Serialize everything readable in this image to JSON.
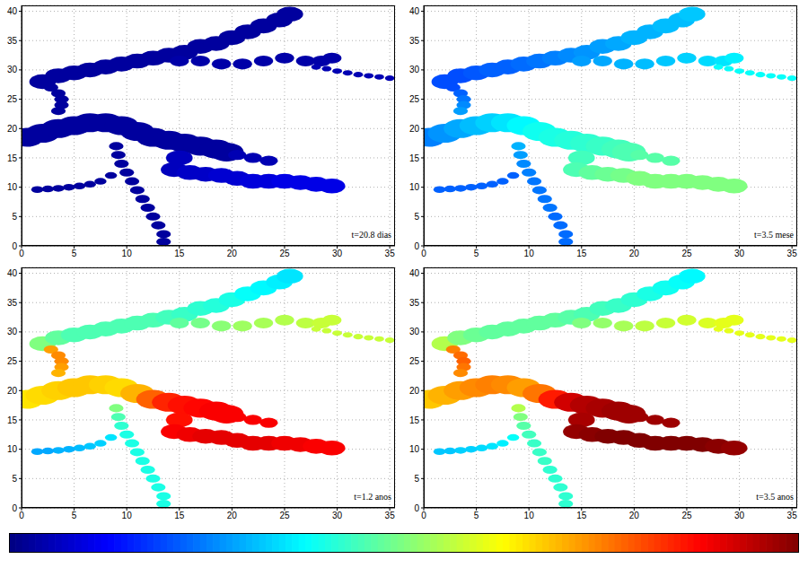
{
  "chart_data": {
    "type": "heatmap",
    "xlim": [
      0,
      35.5
    ],
    "ylim": [
      0,
      41
    ],
    "xticks": [
      0,
      5,
      10,
      15,
      20,
      25,
      30,
      35
    ],
    "yticks": [
      0,
      5,
      10,
      15,
      20,
      25,
      30,
      35,
      40
    ],
    "grid": true,
    "colorbar": {
      "clim": [
        0,
        1
      ]
    },
    "regions": [
      {
        "width": 2.2,
        "x": [
          2,
          3.5,
          5,
          6.5,
          8,
          9.5,
          11,
          12.5,
          14,
          15.5,
          17,
          18.5,
          20,
          21.5,
          23,
          24.5,
          25.5
        ],
        "y": [
          28,
          29,
          29.5,
          30,
          30.5,
          31,
          31.5,
          32,
          32.5,
          33,
          34,
          34.5,
          35.5,
          36.5,
          37.5,
          38.5,
          39.5
        ]
      },
      {
        "width": 1.6,
        "x": [
          15,
          17,
          19,
          21,
          23,
          25,
          27,
          28.5,
          29.5
        ],
        "y": [
          31.5,
          31.5,
          31,
          31,
          31.5,
          32,
          31.5,
          31.5,
          32
        ]
      },
      {
        "width": 0.8,
        "x": [
          28,
          29,
          30,
          31,
          32,
          33,
          34,
          35
        ],
        "y": [
          30.5,
          30.2,
          29.8,
          29.5,
          29.2,
          29,
          28.8,
          28.6
        ]
      },
      {
        "width": 1.2,
        "x": [
          2.8,
          3.5,
          3.8,
          3.8,
          3.5
        ],
        "y": [
          27,
          26,
          25,
          24,
          23
        ]
      },
      {
        "width": 2.8,
        "x": [
          0.5,
          2,
          3.5,
          5,
          6.5,
          8,
          9.5,
          11,
          12.5,
          14,
          15.5,
          17,
          18.5,
          19.5
        ],
        "y": [
          18.5,
          19.2,
          20,
          20.5,
          21,
          21,
          20.5,
          19.5,
          18.5,
          18,
          17.5,
          17,
          16.5,
          16
        ]
      },
      {
        "width": 1.5,
        "x": [
          20.5,
          22,
          23.5
        ],
        "y": [
          15.5,
          15,
          14.5
        ]
      },
      {
        "width": 2.2,
        "x": [
          15,
          14.5,
          16,
          17.5,
          19,
          20.5,
          22,
          23.5,
          25,
          26.5,
          28,
          29.5
        ],
        "y": [
          15,
          13,
          12.5,
          12.2,
          12,
          11.5,
          11,
          11,
          11,
          10.8,
          10.5,
          10.2
        ]
      },
      {
        "width": 1.2,
        "x": [
          9,
          9.2,
          9.5,
          10,
          10.5,
          11,
          11.5,
          12,
          12.5,
          13,
          13.5,
          13.5
        ],
        "y": [
          17,
          15.5,
          14,
          12.5,
          11,
          9.5,
          8,
          6.5,
          5,
          3.5,
          2,
          0.7
        ]
      },
      {
        "width": 1.0,
        "x": [
          8.5,
          7.5,
          6.5,
          5.5,
          4.5,
          3.5,
          2.5,
          1.5
        ],
        "y": [
          12,
          11,
          10.5,
          10.2,
          10,
          9.8,
          9.7,
          9.6
        ]
      }
    ],
    "panels": [
      {
        "annotation": "t=20.8 dias",
        "values": [
          [
            0.03,
            0.03,
            0.03,
            0.03,
            0.03,
            0.03,
            0.03,
            0.03,
            0.03,
            0.03,
            0.03,
            0.03,
            0.03,
            0.03,
            0.03,
            0.03,
            0.03
          ],
          [
            0.04,
            0.04,
            0.04,
            0.04,
            0.04,
            0.04,
            0.04,
            0.04,
            0.04
          ],
          [
            0.05,
            0.05,
            0.05,
            0.05,
            0.05,
            0.05,
            0.05,
            0.05
          ],
          [
            0.03,
            0.03,
            0.03,
            0.03,
            0.03
          ],
          [
            0.03,
            0.03,
            0.03,
            0.03,
            0.03,
            0.03,
            0.03,
            0.03,
            0.03,
            0.03,
            0.03,
            0.03,
            0.03,
            0.03
          ],
          [
            0.05,
            0.05,
            0.05
          ],
          [
            0.06,
            0.06,
            0.07,
            0.07,
            0.08,
            0.08,
            0.09,
            0.09,
            0.1,
            0.1,
            0.1,
            0.1
          ],
          [
            0.03,
            0.03,
            0.03,
            0.03,
            0.03,
            0.03,
            0.03,
            0.03,
            0.03,
            0.03,
            0.03,
            0.03
          ],
          [
            0.03,
            0.03,
            0.03,
            0.03,
            0.03,
            0.03,
            0.03,
            0.03
          ]
        ]
      },
      {
        "annotation": "t=3.5 mese",
        "values": [
          [
            0.2,
            0.2,
            0.21,
            0.22,
            0.22,
            0.23,
            0.24,
            0.25,
            0.26,
            0.27,
            0.28,
            0.29,
            0.3,
            0.3,
            0.31,
            0.31,
            0.32
          ],
          [
            0.28,
            0.29,
            0.3,
            0.31,
            0.32,
            0.33,
            0.34,
            0.35,
            0.36
          ],
          [
            0.38,
            0.38,
            0.38,
            0.38,
            0.38,
            0.38,
            0.38,
            0.38
          ],
          [
            0.2,
            0.22,
            0.24,
            0.26,
            0.28
          ],
          [
            0.25,
            0.27,
            0.29,
            0.31,
            0.33,
            0.35,
            0.37,
            0.39,
            0.4,
            0.41,
            0.42,
            0.43,
            0.44,
            0.45
          ],
          [
            0.46,
            0.46,
            0.46
          ],
          [
            0.44,
            0.45,
            0.47,
            0.48,
            0.49,
            0.5,
            0.5,
            0.5,
            0.5,
            0.5,
            0.5,
            0.5
          ],
          [
            0.3,
            0.28,
            0.26,
            0.25,
            0.24,
            0.24,
            0.24,
            0.24,
            0.23,
            0.23,
            0.23,
            0.23
          ],
          [
            0.22,
            0.22,
            0.22,
            0.22,
            0.22,
            0.22,
            0.22,
            0.22
          ]
        ]
      },
      {
        "annotation": "t=1.2 anos",
        "values": [
          [
            0.5,
            0.47,
            0.45,
            0.45,
            0.45,
            0.45,
            0.45,
            0.45,
            0.44,
            0.43,
            0.42,
            0.41,
            0.4,
            0.38,
            0.37,
            0.36,
            0.35
          ],
          [
            0.47,
            0.49,
            0.51,
            0.53,
            0.54,
            0.55,
            0.56,
            0.57,
            0.57
          ],
          [
            0.57,
            0.57,
            0.57,
            0.57,
            0.57,
            0.57,
            0.57,
            0.57
          ],
          [
            0.72,
            0.74,
            0.74,
            0.72,
            0.7
          ],
          [
            0.65,
            0.66,
            0.67,
            0.68,
            0.68,
            0.67,
            0.66,
            0.7,
            0.78,
            0.84,
            0.86,
            0.87,
            0.88,
            0.88
          ],
          [
            0.88,
            0.88,
            0.88
          ],
          [
            0.86,
            0.88,
            0.89,
            0.9,
            0.9,
            0.9,
            0.9,
            0.9,
            0.89,
            0.89,
            0.88,
            0.88
          ],
          [
            0.5,
            0.45,
            0.42,
            0.4,
            0.4,
            0.4,
            0.4,
            0.4,
            0.4,
            0.4,
            0.4,
            0.4
          ],
          [
            0.35,
            0.33,
            0.32,
            0.31,
            0.3,
            0.3,
            0.29,
            0.29
          ]
        ]
      },
      {
        "annotation": "t=3.5 anos",
        "values": [
          [
            0.55,
            0.5,
            0.48,
            0.47,
            0.47,
            0.47,
            0.47,
            0.47,
            0.46,
            0.45,
            0.44,
            0.43,
            0.42,
            0.4,
            0.39,
            0.38,
            0.37
          ],
          [
            0.5,
            0.52,
            0.54,
            0.56,
            0.57,
            0.58,
            0.59,
            0.6,
            0.6
          ],
          [
            0.6,
            0.6,
            0.6,
            0.6,
            0.6,
            0.6,
            0.6,
            0.6
          ],
          [
            0.75,
            0.77,
            0.78,
            0.76,
            0.74
          ],
          [
            0.68,
            0.7,
            0.72,
            0.74,
            0.75,
            0.74,
            0.72,
            0.76,
            0.85,
            0.92,
            0.95,
            0.96,
            0.97,
            0.97
          ],
          [
            0.97,
            0.97,
            0.97
          ],
          [
            0.96,
            0.98,
            0.99,
            1,
            1,
            1,
            1,
            1,
            1,
            1,
            0.99,
            0.98
          ],
          [
            0.55,
            0.5,
            0.46,
            0.44,
            0.43,
            0.43,
            0.43,
            0.42,
            0.42,
            0.42,
            0.42,
            0.42
          ],
          [
            0.38,
            0.36,
            0.35,
            0.34,
            0.33,
            0.33,
            0.32,
            0.32
          ]
        ]
      }
    ]
  }
}
